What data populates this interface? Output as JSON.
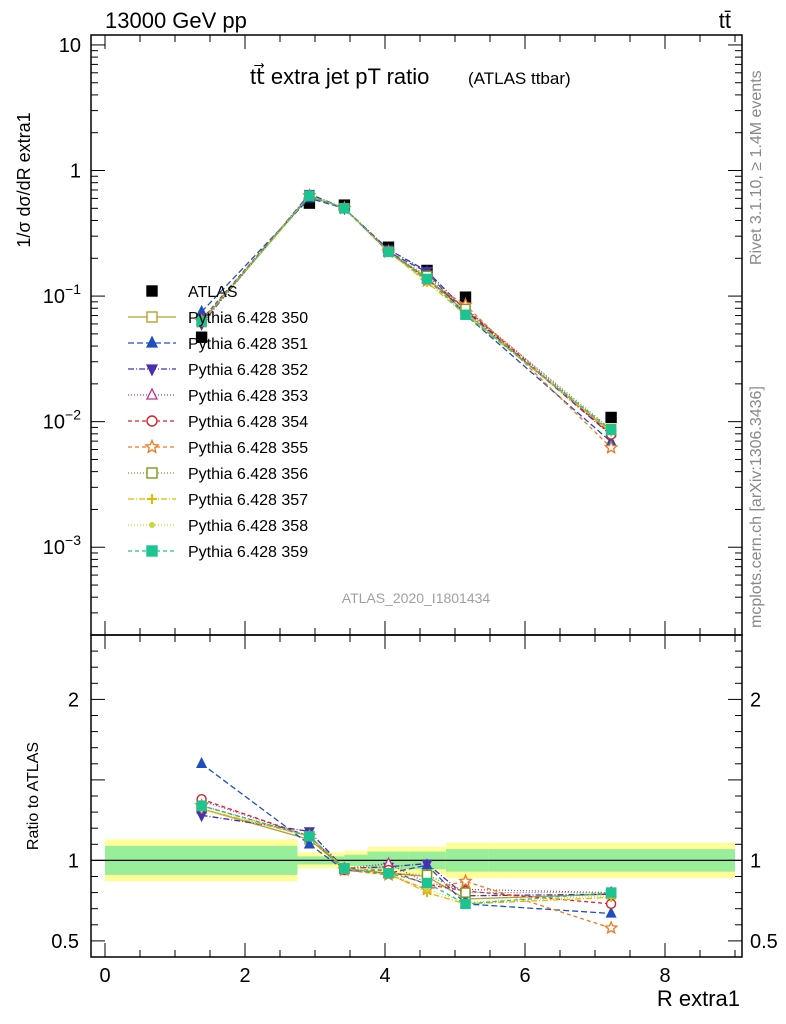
{
  "header": {
    "energy": "13000 GeV pp",
    "process": "tt̄"
  },
  "side_text": {
    "rivet": "Rivet 3.1.10, ≥ 1.4M events",
    "mcplots": "mcplots.cern.ch [arXiv:1306.3436]"
  },
  "chart_data": [
    {
      "type": "scatter",
      "panel": "main",
      "title": "tt⃗ extra jet pT ratio",
      "title_note": "(ATLAS ttbar)",
      "analysis": "ATLAS_2020_I1801434",
      "ylabel": "1/σ dσ/dR extra1",
      "yscale": "log",
      "ylim": [
        0.0002,
        12
      ],
      "xlim": [
        -0.2,
        9.1
      ],
      "x": [
        1.38,
        2.92,
        3.42,
        4.05,
        4.6,
        5.15,
        7.23
      ],
      "series": [
        {
          "name": "ATLAS",
          "color": "#000000",
          "marker": "square-filled",
          "dash": "none",
          "values": [
            0.047,
            0.55,
            0.53,
            0.245,
            0.16,
            0.098,
            0.0108
          ]
        },
        {
          "name": "Pythia 6.428 350",
          "color": "#b5a032",
          "marker": "square-open",
          "dash": "solid",
          "values": [
            0.062,
            0.62,
            0.5,
            0.225,
            0.14,
            0.074,
            0.0082
          ]
        },
        {
          "name": "Pythia 6.428 351",
          "color": "#1f4fbf",
          "marker": "triangle-up-filled",
          "dash": "6,3",
          "values": [
            0.075,
            0.6,
            0.5,
            0.225,
            0.155,
            0.071,
            0.0069
          ]
        },
        {
          "name": "Pythia 6.428 352",
          "color": "#4a2fb0",
          "marker": "triangle-down-filled",
          "dash": "6,2,1,2",
          "values": [
            0.06,
            0.65,
            0.5,
            0.235,
            0.158,
            0.077,
            0.0078
          ]
        },
        {
          "name": "Pythia 6.428 353",
          "color": "#c0308f",
          "marker": "triangle-up-open",
          "dash": "1,2",
          "values": [
            0.064,
            0.63,
            0.5,
            0.228,
            0.136,
            0.08,
            0.0083
          ]
        },
        {
          "name": "Pythia 6.428 354",
          "color": "#d8202c",
          "marker": "circle-open",
          "dash": "4,3",
          "values": [
            0.065,
            0.63,
            0.5,
            0.23,
            0.136,
            0.079,
            0.0079
          ]
        },
        {
          "name": "Pythia 6.428 355",
          "color": "#f07820",
          "marker": "star-open",
          "dash": "4,3",
          "values": [
            0.063,
            0.63,
            0.5,
            0.225,
            0.132,
            0.085,
            0.0062
          ]
        },
        {
          "name": "Pythia 6.428 356",
          "color": "#7f9a18",
          "marker": "square-open",
          "dash": "1,2",
          "values": [
            0.063,
            0.63,
            0.5,
            0.225,
            0.145,
            0.079,
            0.0087
          ]
        },
        {
          "name": "Pythia 6.428 357",
          "color": "#e6b800",
          "marker": "cross",
          "dash": "6,2,1,2",
          "values": [
            0.062,
            0.63,
            0.5,
            0.225,
            0.129,
            0.071,
            0.0083
          ]
        },
        {
          "name": "Pythia 6.428 358",
          "color": "#cad63a",
          "marker": "dot",
          "dash": "1,2",
          "values": [
            0.062,
            0.63,
            0.5,
            0.225,
            0.132,
            0.073,
            0.0084
          ]
        },
        {
          "name": "Pythia 6.428 359",
          "color": "#1ec392",
          "marker": "square-filled",
          "dash": "4,3",
          "values": [
            0.063,
            0.63,
            0.5,
            0.225,
            0.137,
            0.071,
            0.0086
          ]
        }
      ]
    },
    {
      "type": "line",
      "panel": "ratio",
      "ylabel": "Ratio to ATLAS",
      "xlabel": "R extra1",
      "ylim": [
        0.4,
        2.4
      ],
      "xlim": [
        -0.2,
        9.1
      ],
      "x_ticks": [
        0,
        2,
        4,
        6,
        8
      ],
      "y_ticks": [
        0.5,
        1,
        2
      ],
      "x": [
        1.38,
        2.92,
        3.42,
        4.05,
        4.6,
        5.15,
        7.23
      ],
      "bands": {
        "edges": [
          0.0,
          2.75,
          3.42,
          3.75,
          4.33,
          4.87,
          5.48,
          9.0
        ],
        "green": [
          0.09,
          0.025,
          0.035,
          0.055,
          0.055,
          0.07,
          0.07
        ],
        "yellow": [
          0.13,
          0.05,
          0.06,
          0.085,
          0.085,
          0.11,
          0.11
        ]
      },
      "series": [
        {
          "name": "Pythia 6.428 350",
          "values": [
            1.32,
            1.13,
            0.95,
            0.92,
            0.9,
            0.76,
            0.79
          ]
        },
        {
          "name": "Pythia 6.428 351",
          "values": [
            1.6,
            1.1,
            0.94,
            0.92,
            0.97,
            0.73,
            0.67
          ]
        },
        {
          "name": "Pythia 6.428 352",
          "values": [
            1.28,
            1.18,
            0.95,
            0.96,
            0.98,
            0.78,
            0.79
          ]
        },
        {
          "name": "Pythia 6.428 353",
          "values": [
            1.37,
            1.15,
            0.95,
            0.98,
            0.86,
            0.82,
            0.8
          ]
        },
        {
          "name": "Pythia 6.428 354",
          "values": [
            1.38,
            1.15,
            0.94,
            0.94,
            0.85,
            0.81,
            0.73
          ]
        },
        {
          "name": "Pythia 6.428 355",
          "values": [
            1.34,
            1.15,
            0.94,
            0.91,
            0.82,
            0.87,
            0.58
          ]
        },
        {
          "name": "Pythia 6.428 356",
          "values": [
            1.34,
            1.15,
            0.95,
            0.92,
            0.91,
            0.8,
            0.8
          ]
        },
        {
          "name": "Pythia 6.428 357",
          "values": [
            1.32,
            1.15,
            0.95,
            0.92,
            0.8,
            0.73,
            0.77
          ]
        },
        {
          "name": "Pythia 6.428 358",
          "values": [
            1.32,
            1.15,
            0.95,
            0.92,
            0.82,
            0.74,
            0.78
          ]
        },
        {
          "name": "Pythia 6.428 359",
          "values": [
            1.34,
            1.15,
            0.95,
            0.92,
            0.86,
            0.73,
            0.8
          ]
        }
      ]
    }
  ]
}
